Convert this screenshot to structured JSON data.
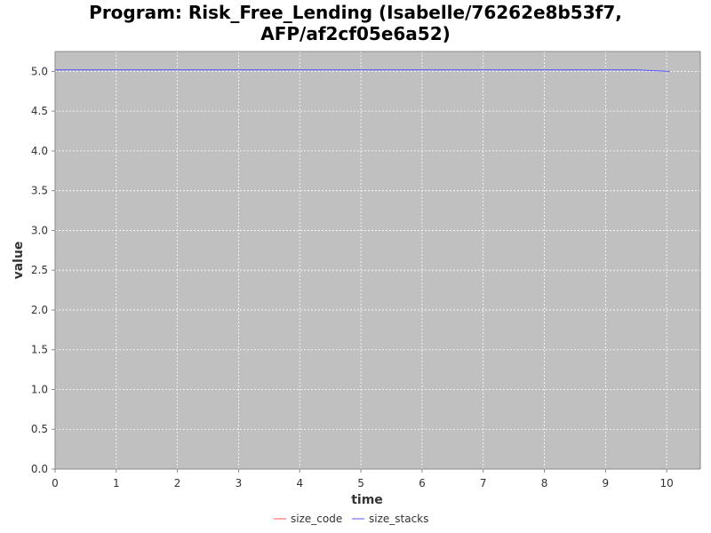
{
  "chart_data": {
    "type": "line",
    "title_lines": [
      "Program: Risk_Free_Lending (Isabelle/76262e8b53f7,",
      "AFP/af2cf05e6a52)"
    ],
    "xlabel": "time",
    "ylabel": "value",
    "xlim": [
      0,
      10.55
    ],
    "ylim": [
      0,
      5.25
    ],
    "xticks": [
      "0",
      "1",
      "2",
      "3",
      "4",
      "5",
      "6",
      "7",
      "8",
      "9",
      "10"
    ],
    "yticks": [
      "0.0",
      "0.5",
      "1.0",
      "1.5",
      "2.0",
      "2.5",
      "3.0",
      "3.5",
      "4.0",
      "4.5",
      "5.0"
    ],
    "grid": true,
    "legend_position": "bottom-center",
    "background": "#c0c0c0",
    "series": [
      {
        "name": "size_code",
        "color": "#ff5555",
        "x": [
          0,
          10.05
        ],
        "y": [
          0.0,
          0.0
        ]
      },
      {
        "name": "size_stacks",
        "color": "#5555ff",
        "x": [
          0,
          9.5,
          10.05
        ],
        "y": [
          5.02,
          5.02,
          5.0
        ]
      }
    ]
  }
}
